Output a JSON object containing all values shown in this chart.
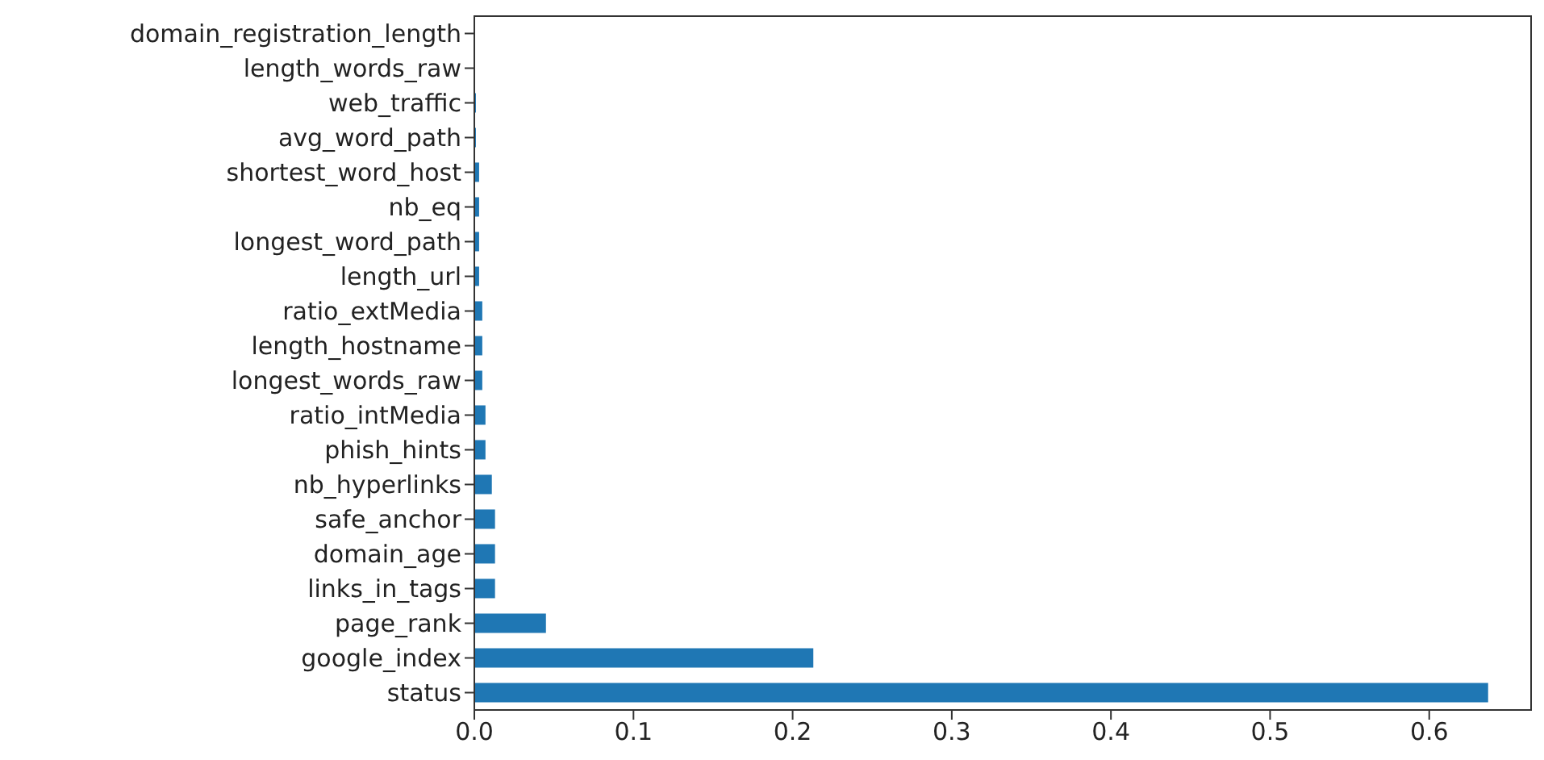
{
  "chart_data": {
    "type": "bar",
    "orientation": "horizontal",
    "categories": [
      "domain_registration_length",
      "length_words_raw",
      "web_traffic",
      "avg_word_path",
      "shortest_word_host",
      "nb_eq",
      "longest_word_path",
      "length_url",
      "ratio_extMedia",
      "length_hostname",
      "longest_words_raw",
      "ratio_intMedia",
      "phish_hints",
      "nb_hyperlinks",
      "safe_anchor",
      "domain_age",
      "links_in_tags",
      "page_rank",
      "google_index",
      "status"
    ],
    "values": [
      null,
      null,
      0.001,
      0.001,
      0.003,
      0.003,
      0.003,
      0.003,
      0.005,
      0.005,
      0.005,
      0.007,
      0.007,
      0.011,
      0.013,
      0.013,
      0.013,
      0.045,
      0.213,
      0.637
    ],
    "color": "#1f77b4",
    "xlim": [
      0,
      0.664
    ],
    "xticks": [
      {
        "value": 0,
        "label": "0.0"
      },
      {
        "value": 0.1,
        "label": "0.1"
      },
      {
        "value": 0.2,
        "label": "0.2"
      },
      {
        "value": 0.3,
        "label": "0.3"
      },
      {
        "value": 0.4,
        "label": "0.4"
      },
      {
        "value": 0.5,
        "label": "0.5"
      },
      {
        "value": 0.6,
        "label": "0.6"
      }
    ],
    "grid": false,
    "legend": false
  }
}
